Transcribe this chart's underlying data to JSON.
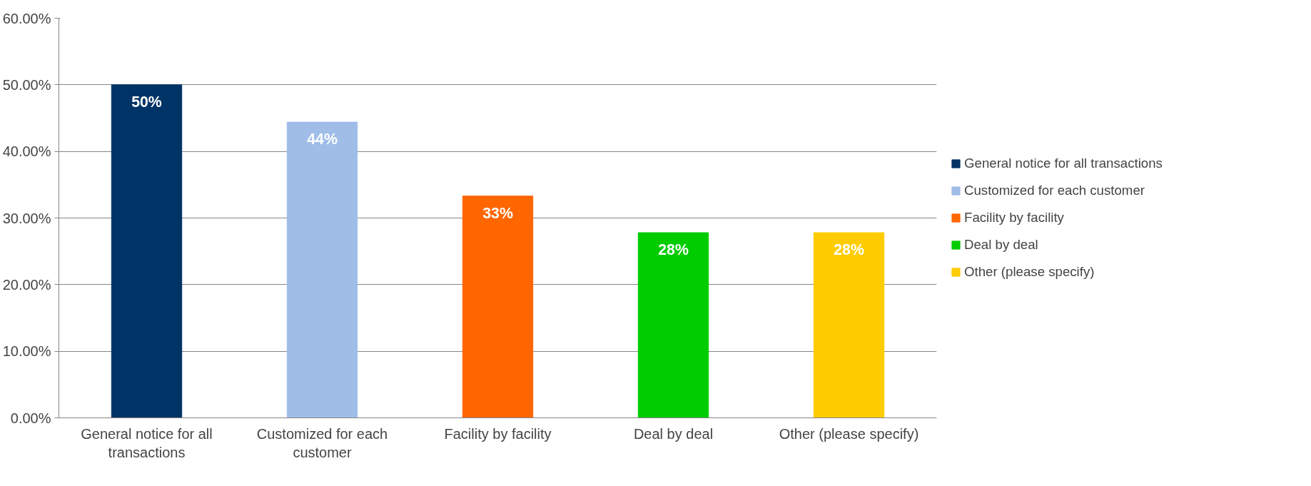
{
  "chart_data": {
    "type": "bar",
    "stacked": true,
    "categories": [
      "General notice for all transactions",
      "Customized for each customer",
      "Facility by facility",
      "Deal by deal",
      "Other (please specify)"
    ],
    "series": [
      {
        "name": "General notice for all transactions",
        "color": "#003366",
        "values": [
          50,
          null,
          null,
          null,
          null
        ],
        "value_labels": [
          "50%",
          null,
          null,
          null,
          null
        ]
      },
      {
        "name": "Customized for each customer",
        "color": "#a0bde8",
        "values": [
          null,
          44.4,
          null,
          null,
          null
        ],
        "value_labels": [
          null,
          "44%",
          null,
          null,
          null
        ]
      },
      {
        "name": "Facility by facility",
        "color": "#ff6600",
        "values": [
          null,
          null,
          33.3,
          null,
          null
        ],
        "value_labels": [
          null,
          null,
          "33%",
          null,
          null
        ]
      },
      {
        "name": "Deal by deal",
        "color": "#00cc00",
        "values": [
          null,
          null,
          null,
          27.8,
          null
        ],
        "value_labels": [
          null,
          null,
          null,
          "28%",
          null
        ]
      },
      {
        "name": "Other (please specify)",
        "color": "#ffcc00",
        "values": [
          null,
          null,
          null,
          null,
          27.8
        ],
        "value_labels": [
          null,
          null,
          null,
          null,
          "28%"
        ]
      }
    ],
    "ylim": [
      0,
      60
    ],
    "yticks": [
      {
        "value": 0,
        "label": "0.00%"
      },
      {
        "value": 10,
        "label": "10.00%"
      },
      {
        "value": 20,
        "label": "20.00%"
      },
      {
        "value": 30,
        "label": "30.00%"
      },
      {
        "value": 40,
        "label": "40.00%"
      },
      {
        "value": 50,
        "label": "50.00%"
      },
      {
        "value": 60,
        "label": "60.00%"
      }
    ],
    "grid": "y",
    "legend": "right"
  }
}
